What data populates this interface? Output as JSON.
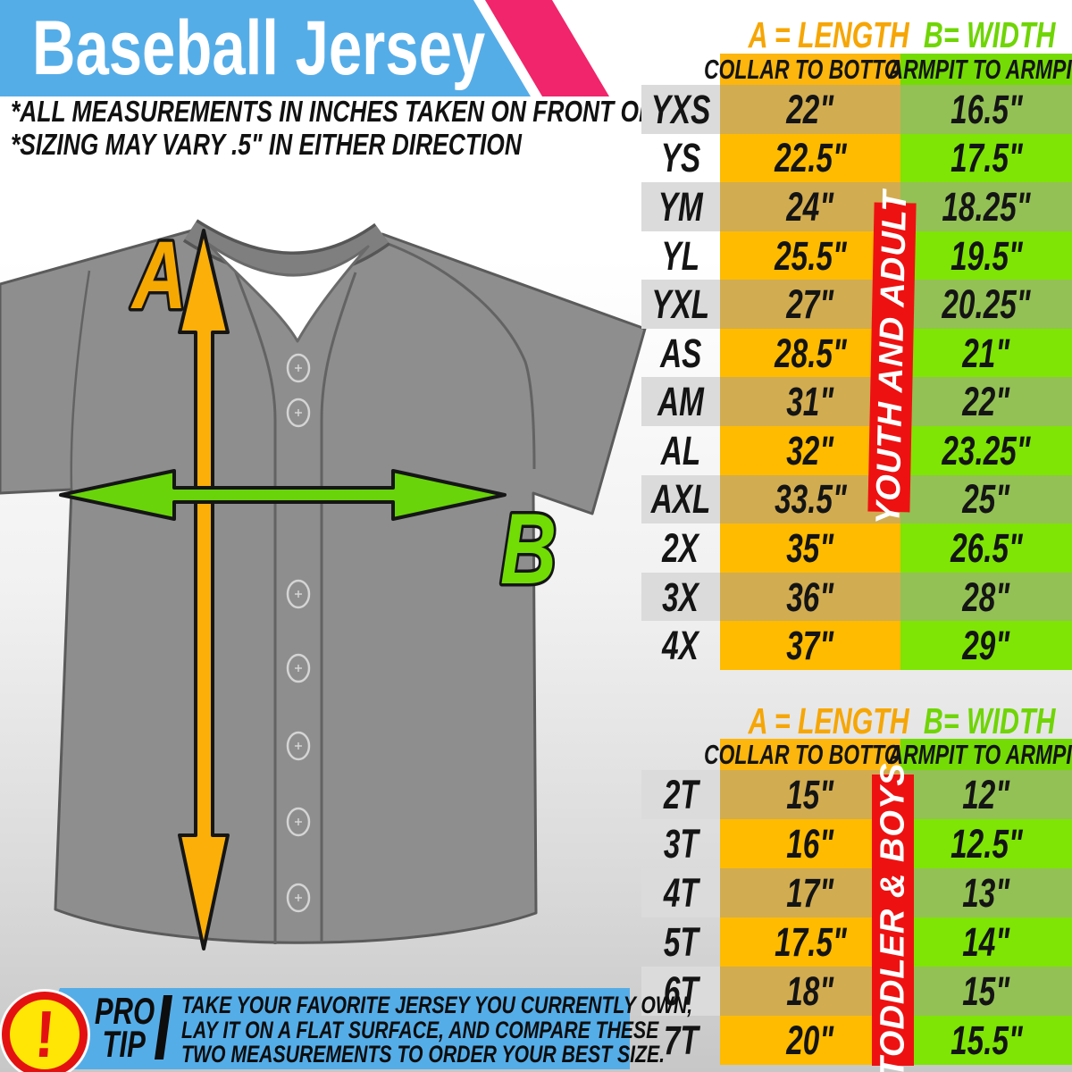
{
  "header": {
    "title": "Baseball Jersey",
    "banner_color": "#55ADE8",
    "stripe_color": "#F0256B",
    "notes": [
      "*ALL MEASUREMENTS IN INCHES TAKEN ON FRONT OF JERSEY",
      "*SIZING MAY VARY .5\" IN EITHER DIRECTION"
    ]
  },
  "diagram": {
    "arrow_a_label": "A",
    "arrow_b_label": "B",
    "arrow_a_color": "#FBAF08",
    "arrow_b_color": "#69D40A",
    "jersey_color": "#8E8E8E"
  },
  "tables": [
    {
      "legend_a": "A = LENGTH",
      "legend_b": "B= WIDTH",
      "col_a": "COLLAR TO BOTTOM",
      "col_b": "ARMPIT TO ARMPIT",
      "group_label": "YOUTH AND ADULT",
      "rows": [
        [
          "YXS",
          "22\"",
          "16.5\""
        ],
        [
          "YS",
          "22.5\"",
          "17.5\""
        ],
        [
          "YM",
          "24\"",
          "18.25\""
        ],
        [
          "YL",
          "25.5\"",
          "19.5\""
        ],
        [
          "YXL",
          "27\"",
          "20.25\""
        ],
        [
          "AS",
          "28.5\"",
          "21\""
        ],
        [
          "AM",
          "31\"",
          "22\""
        ],
        [
          "AL",
          "32\"",
          "23.25\""
        ],
        [
          "AXL",
          "33.5\"",
          "25\""
        ],
        [
          "2X",
          "35\"",
          "26.5\""
        ],
        [
          "3X",
          "36\"",
          "28\""
        ],
        [
          "4X",
          "37\"",
          "29\""
        ]
      ]
    },
    {
      "legend_a": "A = LENGTH",
      "legend_b": "B= WIDTH",
      "col_a": "COLLAR TO BOTTOM",
      "col_b": "ARMPIT TO ARMPIT",
      "group_label": "TODDLER & BOYS",
      "rows": [
        [
          "2T",
          "15\"",
          "12\""
        ],
        [
          "3T",
          "16\"",
          "12.5\""
        ],
        [
          "4T",
          "17\"",
          "13\""
        ],
        [
          "5T",
          "17.5\"",
          "14\""
        ],
        [
          "6T",
          "18\"",
          "15\""
        ],
        [
          "7T",
          "20\"",
          "15.5\""
        ]
      ]
    }
  ],
  "colors": {
    "orange_bright": "#FEBB00",
    "orange_muted": "#D1AC51",
    "green_bright": "#7EE505",
    "green_muted": "#93C155",
    "header_orange": "#FCB60D",
    "header_green": "#74DB04",
    "legend_orange": "#F6A604",
    "legend_green": "#6FD504",
    "label_gray": "#DBDBDB",
    "group_red": "#EE1111"
  },
  "pro_tip": {
    "icon_glyph": "!",
    "label_top": "PRO",
    "label_bottom": "TIP",
    "lines": [
      "TAKE YOUR FAVORITE JERSEY YOU CURRENTLY OWN,",
      "LAY IT ON A FLAT SURFACE, AND COMPARE THESE",
      "TWO MEASUREMENTS TO ORDER YOUR BEST SIZE."
    ]
  }
}
